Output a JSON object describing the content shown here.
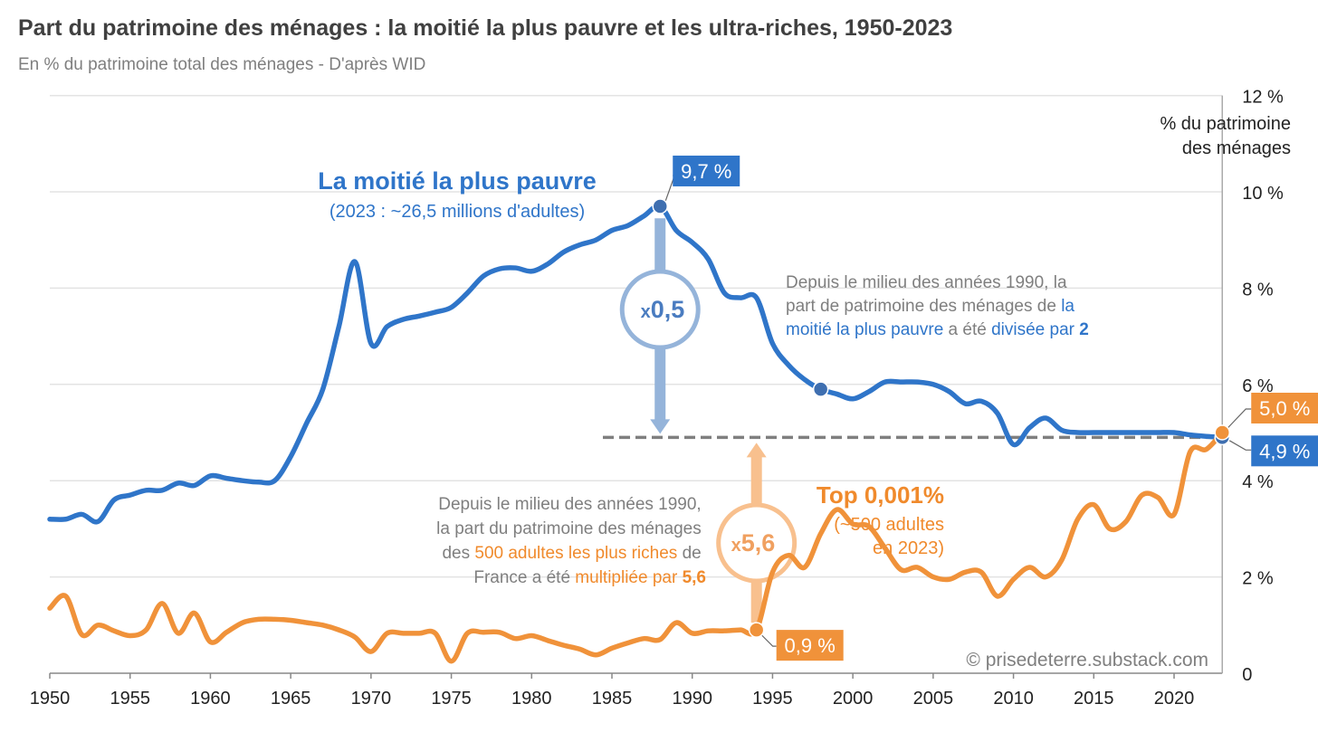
{
  "colors": {
    "blue": "#2f75c9",
    "orange": "#f0923a",
    "blue_light": "#95b4da",
    "orange_light": "#f8c08e",
    "grid": "#e3e3e3",
    "dash": "#7f7f7f"
  },
  "chart_data": {
    "type": "line",
    "title": "Part du patrimoine des ménages : la moitié la plus pauvre et les ultra-riches, 1950-2023",
    "subtitle": "En % du patrimoine total des ménages - D'après WID",
    "ylabel_line1": "% du patrimoine",
    "ylabel_line2": "des ménages",
    "ylim": [
      0,
      12
    ],
    "xlim": [
      1950,
      2023
    ],
    "y_ticks": [
      0,
      2,
      4,
      6,
      8,
      10,
      12
    ],
    "y_tick_labels": [
      "0",
      "2 %",
      "4 %",
      "6 %",
      "8 %",
      "10 %",
      "12 %"
    ],
    "x_ticks": [
      1950,
      1955,
      1960,
      1965,
      1970,
      1975,
      1980,
      1985,
      1990,
      1995,
      2000,
      2005,
      2010,
      2015,
      2020
    ],
    "x_tick_labels": [
      "1950",
      "1955",
      "1960",
      "1965",
      "1970",
      "1975",
      "1980",
      "1985",
      "1990",
      "1995",
      "2000",
      "2005",
      "2010",
      "2015",
      "2020"
    ],
    "grid": true,
    "y_axis_side": "right",
    "x_start": 1950,
    "series": [
      {
        "name": "La moitié la plus pauvre",
        "color": "blue",
        "values": [
          3.2,
          3.2,
          3.3,
          3.15,
          3.6,
          3.7,
          3.8,
          3.8,
          3.95,
          3.9,
          4.1,
          4.05,
          4.0,
          3.97,
          4.0,
          4.5,
          5.2,
          5.9,
          7.2,
          8.55,
          6.85,
          7.2,
          7.35,
          7.42,
          7.5,
          7.6,
          7.9,
          8.25,
          8.4,
          8.42,
          8.35,
          8.5,
          8.75,
          8.9,
          9.0,
          9.2,
          9.3,
          9.5,
          9.7,
          9.2,
          8.95,
          8.6,
          7.9,
          7.8,
          7.8,
          6.85,
          6.4,
          6.1,
          5.9,
          5.8,
          5.7,
          5.85,
          6.05,
          6.05,
          6.05,
          6.0,
          5.85,
          5.6,
          5.65,
          5.4,
          4.75,
          5.1,
          5.3,
          5.05,
          5.0,
          5.0,
          5.0,
          5.0,
          5.0,
          5.0,
          5.0,
          4.95,
          4.92,
          4.9
        ]
      },
      {
        "name": "Top 0,001%",
        "color": "orange",
        "values": [
          1.35,
          1.6,
          0.8,
          1.0,
          0.88,
          0.78,
          0.9,
          1.45,
          0.83,
          1.25,
          0.65,
          0.85,
          1.05,
          1.12,
          1.12,
          1.1,
          1.05,
          1.0,
          0.9,
          0.75,
          0.45,
          0.83,
          0.83,
          0.83,
          0.83,
          0.25,
          0.83,
          0.85,
          0.85,
          0.72,
          0.78,
          0.68,
          0.58,
          0.5,
          0.38,
          0.52,
          0.63,
          0.72,
          0.7,
          1.05,
          0.83,
          0.88,
          0.88,
          0.9,
          0.9,
          2.1,
          2.45,
          2.2,
          2.9,
          3.4,
          3.1,
          3.05,
          2.6,
          2.15,
          2.2,
          2.0,
          1.95,
          2.1,
          2.1,
          1.6,
          1.95,
          2.2,
          2.0,
          2.35,
          3.2,
          3.5,
          3.0,
          3.15,
          3.7,
          3.65,
          3.3,
          4.6,
          4.65,
          5.0
        ]
      }
    ],
    "reference_line": {
      "value": 4.9,
      "from_year": 1985,
      "to_year": 2023
    },
    "markers": [
      {
        "series": 0,
        "year": 1988,
        "label": "9,7 %"
      },
      {
        "series": 0,
        "year": 1998,
        "label": ""
      },
      {
        "series": 0,
        "year": 2023,
        "label": "4,9 %"
      },
      {
        "series": 1,
        "year": 1994,
        "label": "0,9 %"
      },
      {
        "series": 1,
        "year": 2023,
        "label": "5,0 %"
      }
    ],
    "annotations": {
      "blue_title": "La moitié la plus pauvre",
      "blue_sub": "(2023 : ~26,5 millions d'adultes)",
      "orange_title": "Top 0,001%",
      "orange_sub1": "(~500 adultes",
      "orange_sub2": "en 2023)",
      "ratio_blue_x": "x",
      "ratio_blue": "0,5",
      "ratio_orange_x": "x",
      "ratio_orange": "5,6",
      "blue_text": {
        "l1": "Depuis le milieu des années 1990, la",
        "l2a": "part de patrimoine des ménages de ",
        "l2b": "la",
        "l3a": "moitié la plus pauvre",
        "l3b": " a été ",
        "l3c": "divisée par ",
        "l3d": "2"
      },
      "orange_text": {
        "l1": "Depuis le milieu des années 1990,",
        "l2": "la part du patrimoine des ménages",
        "l3a": "des ",
        "l3b": "500 adultes les plus riches",
        "l3c": " de",
        "l4a": "France a été ",
        "l4b": "multipliée par ",
        "l4c": "5,6"
      },
      "copyright": "© prisedeterre.substack.com"
    }
  }
}
